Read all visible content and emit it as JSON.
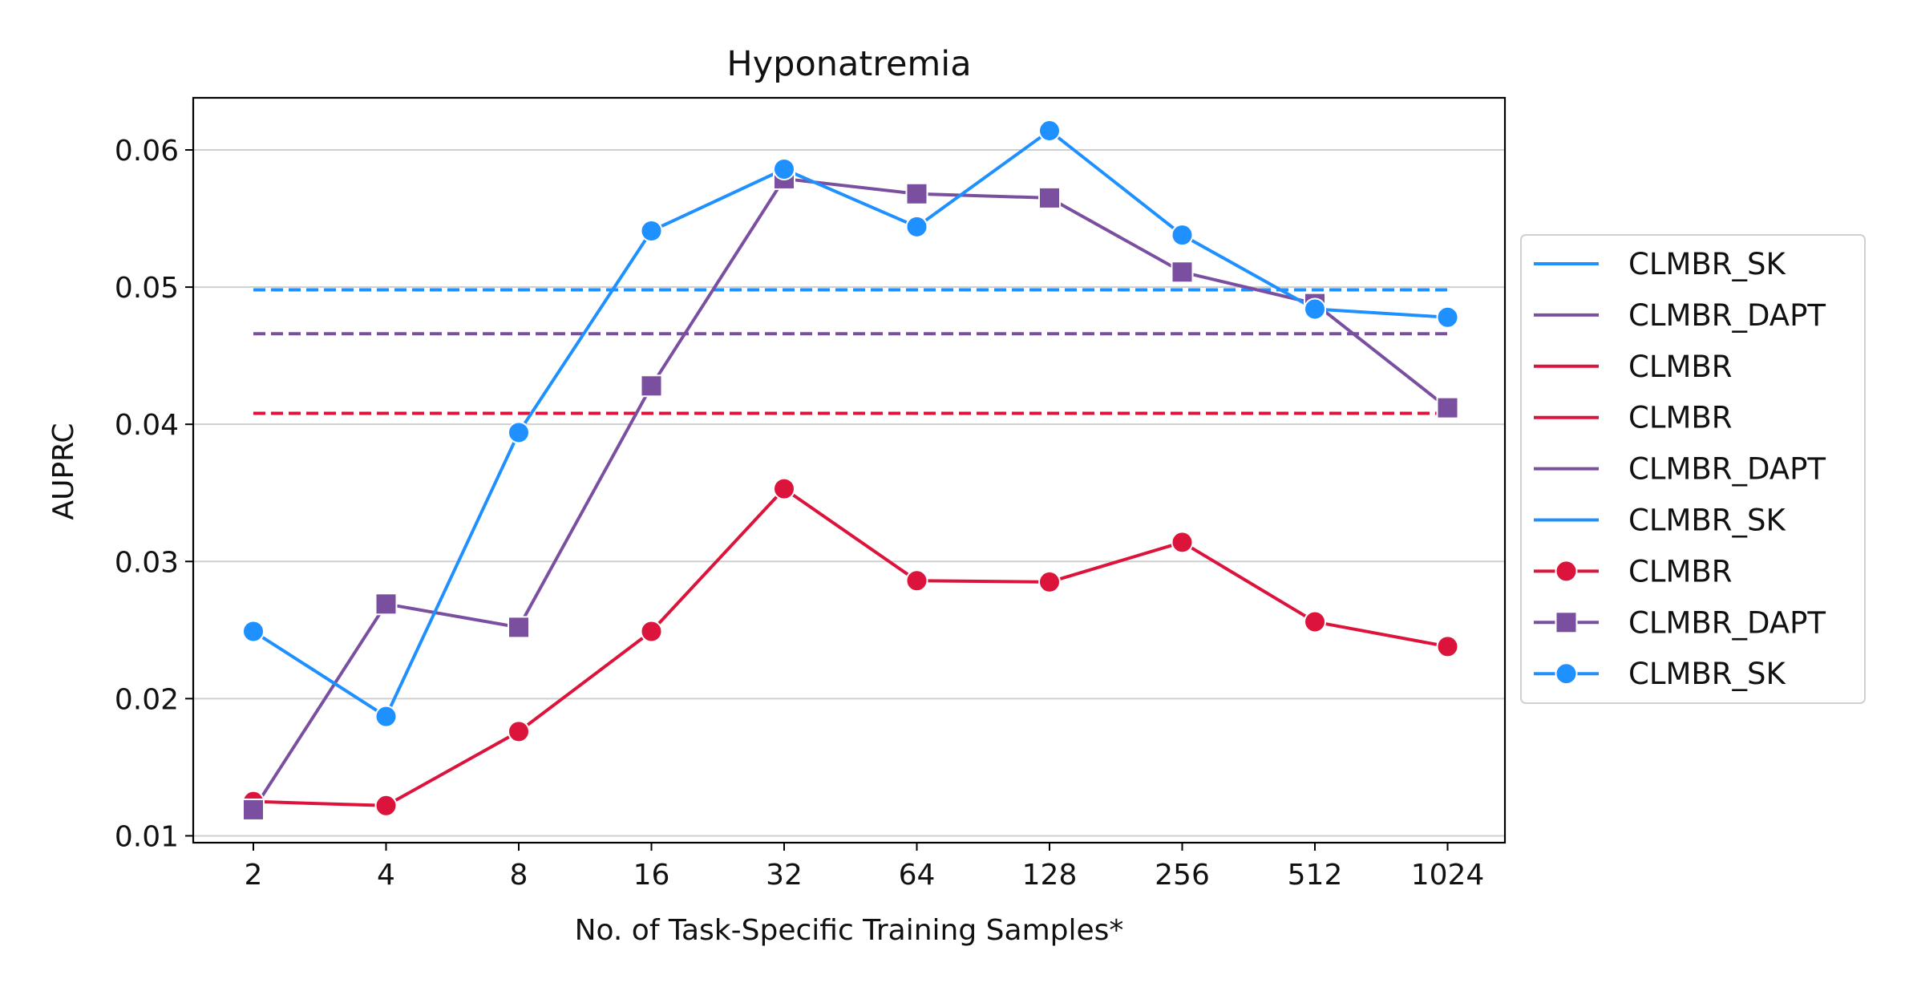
{
  "chart_data": {
    "type": "line",
    "title": "Hyponatremia",
    "xlabel": "No. of Task-Specific Training Samples*",
    "ylabel": "AUPRC",
    "categories": [
      "2",
      "4",
      "8",
      "16",
      "32",
      "64",
      "128",
      "256",
      "512",
      "1024"
    ],
    "ylim": [
      0.0095,
      0.0638
    ],
    "yticks": [
      0.01,
      0.02,
      0.03,
      0.04,
      0.05,
      0.06
    ],
    "ytick_labels": [
      "0.01",
      "0.02",
      "0.03",
      "0.04",
      "0.05",
      "0.06"
    ],
    "grid": "horizontal",
    "legend_position": "right-outside",
    "series": [
      {
        "name": "CLMBR",
        "color": "#dc143c",
        "marker": "circle",
        "values": [
          0.0125,
          0.0122,
          0.0176,
          0.0249,
          0.0353,
          0.0286,
          0.0285,
          0.0314,
          0.0256,
          0.0238
        ]
      },
      {
        "name": "CLMBR_DAPT",
        "color": "#7b4fa0",
        "marker": "square",
        "values": [
          0.0119,
          0.0269,
          0.0252,
          0.0428,
          0.0579,
          0.0568,
          0.0565,
          0.0511,
          0.0488,
          0.0412
        ]
      },
      {
        "name": "CLMBR_SK",
        "color": "#1e90ff",
        "marker": "circle",
        "values": [
          0.0249,
          0.0187,
          0.0394,
          0.0541,
          0.0586,
          0.0544,
          0.0614,
          0.0538,
          0.0484,
          0.0478
        ]
      }
    ],
    "baselines": [
      {
        "name": "CLMBR_SK",
        "color": "#1e90ff",
        "value": 0.0498
      },
      {
        "name": "CLMBR_DAPT",
        "color": "#7b4fa0",
        "value": 0.0466
      },
      {
        "name": "CLMBR",
        "color": "#dc143c",
        "value": 0.0408
      }
    ],
    "legend": [
      {
        "label": "CLMBR_SK",
        "color": "#1e90ff",
        "marker": "none"
      },
      {
        "label": "CLMBR_DAPT",
        "color": "#7b4fa0",
        "marker": "none"
      },
      {
        "label": "CLMBR",
        "color": "#dc143c",
        "marker": "none"
      },
      {
        "label": "CLMBR",
        "color": "#dc143c",
        "marker": "none"
      },
      {
        "label": "CLMBR_DAPT",
        "color": "#7b4fa0",
        "marker": "none"
      },
      {
        "label": "CLMBR_SK",
        "color": "#1e90ff",
        "marker": "none"
      },
      {
        "label": "CLMBR",
        "color": "#dc143c",
        "marker": "circle"
      },
      {
        "label": "CLMBR_DAPT",
        "color": "#7b4fa0",
        "marker": "square"
      },
      {
        "label": "CLMBR_SK",
        "color": "#1e90ff",
        "marker": "circle"
      }
    ]
  }
}
